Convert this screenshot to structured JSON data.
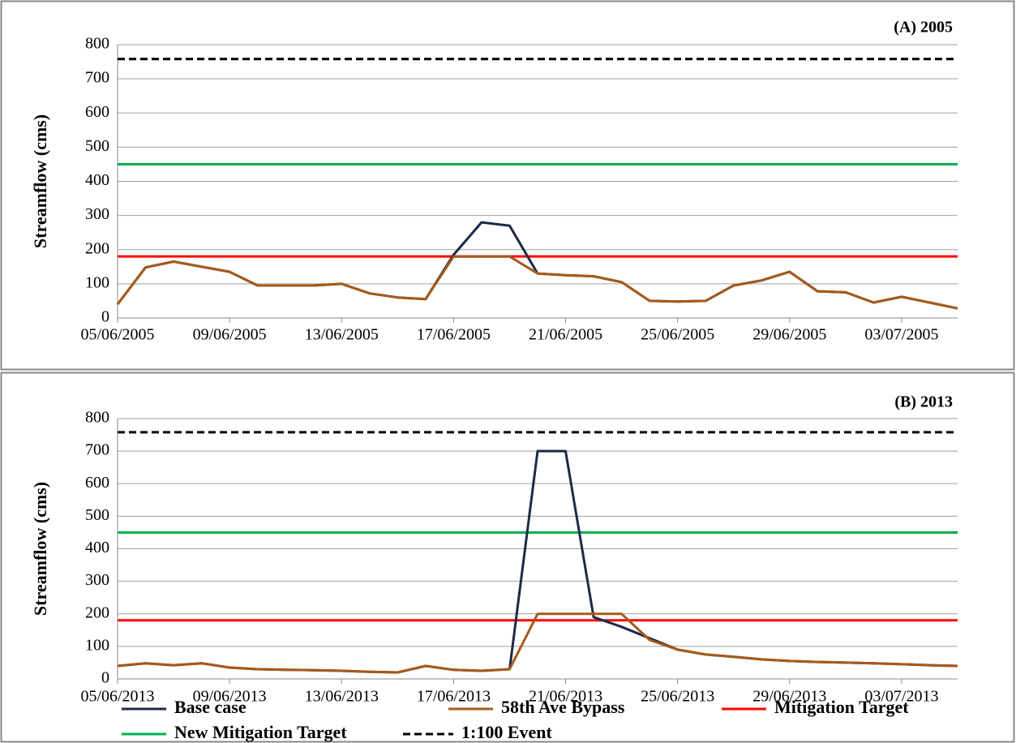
{
  "chart_data": [
    {
      "type": "line",
      "title": "(A) 2005",
      "y_label": "Streamflow (cms)",
      "x": [
        "05/06/2005",
        "06/06/2005",
        "07/06/2005",
        "08/06/2005",
        "09/06/2005",
        "10/06/2005",
        "11/06/2005",
        "12/06/2005",
        "13/06/2005",
        "14/06/2005",
        "15/06/2005",
        "16/06/2005",
        "17/06/2005",
        "18/06/2005",
        "19/06/2005",
        "20/06/2005",
        "21/06/2005",
        "22/06/2005",
        "23/06/2005",
        "24/06/2005",
        "25/06/2005",
        "26/06/2005",
        "27/06/2005",
        "28/06/2005",
        "29/06/2005",
        "30/06/2005",
        "01/07/2005",
        "02/07/2005",
        "03/07/2005",
        "04/07/2005",
        "05/07/2005"
      ],
      "series": [
        {
          "color": "#1c2a48",
          "values": [
            40,
            148,
            165,
            150,
            135,
            95,
            95,
            95,
            100,
            72,
            60,
            55,
            185,
            280,
            270,
            130,
            125,
            122,
            105,
            50,
            48,
            50,
            95,
            110,
            135,
            78,
            75,
            45,
            62,
            45,
            28
          ]
        },
        {
          "color": "#a65a1a",
          "values": [
            40,
            148,
            165,
            150,
            135,
            95,
            95,
            95,
            100,
            72,
            60,
            55,
            180,
            180,
            180,
            130,
            125,
            122,
            105,
            50,
            48,
            50,
            95,
            110,
            135,
            78,
            75,
            45,
            62,
            45,
            28
          ]
        }
      ],
      "reference_lines": [
        {
          "value": 180,
          "color": "#ff0000"
        },
        {
          "value": 450,
          "color": "#00b050"
        },
        {
          "value": 758,
          "color": "#000000",
          "dashed": true
        }
      ],
      "xlim": [
        "05/06/2005",
        "05/07/2005"
      ],
      "xticks": [
        "05/06/2005",
        "09/06/2005",
        "13/06/2005",
        "17/06/2005",
        "21/06/2005",
        "25/06/2005",
        "29/06/2005",
        "03/07/2005"
      ],
      "ylim": [
        0,
        800
      ],
      "yticks": [
        0,
        100,
        200,
        300,
        400,
        500,
        600,
        700,
        800
      ],
      "grid": true
    },
    {
      "type": "line",
      "title": "(B) 2013",
      "y_label": "Streamflow (cms)",
      "x": [
        "05/06/2013",
        "06/06/2013",
        "07/06/2013",
        "08/06/2013",
        "09/06/2013",
        "10/06/2013",
        "11/06/2013",
        "12/06/2013",
        "13/06/2013",
        "14/06/2013",
        "15/06/2013",
        "16/06/2013",
        "17/06/2013",
        "18/06/2013",
        "19/06/2013",
        "20/06/2013",
        "21/06/2013",
        "22/06/2013",
        "23/06/2013",
        "24/06/2013",
        "25/06/2013",
        "26/06/2013",
        "27/06/2013",
        "28/06/2013",
        "29/06/2013",
        "30/06/2013",
        "01/07/2013",
        "02/07/2013",
        "03/07/2013",
        "04/07/2013",
        "05/07/2013"
      ],
      "series": [
        {
          "name": "Base case",
          "color": "#1c2a48",
          "values": [
            40,
            48,
            42,
            48,
            35,
            30,
            28,
            27,
            25,
            22,
            20,
            40,
            28,
            25,
            30,
            700,
            700,
            190,
            160,
            125,
            90,
            75,
            68,
            60,
            55,
            52,
            50,
            48,
            45,
            42,
            40
          ]
        },
        {
          "name": "58th Ave Bypass",
          "color": "#a65a1a",
          "values": [
            40,
            48,
            42,
            48,
            35,
            30,
            28,
            27,
            25,
            22,
            20,
            40,
            28,
            25,
            30,
            200,
            200,
            200,
            200,
            120,
            90,
            75,
            68,
            60,
            55,
            52,
            50,
            48,
            45,
            42,
            40
          ]
        }
      ],
      "reference_lines": [
        {
          "name": "Mitigation Target",
          "value": 180,
          "color": "#ff0000"
        },
        {
          "name": "New Mitigation Target",
          "value": 450,
          "color": "#00b050"
        },
        {
          "name": "1:100 Event",
          "value": 758,
          "color": "#000000",
          "dashed": true
        }
      ],
      "xlim": [
        "05/06/2013",
        "05/07/2013"
      ],
      "xticks": [
        "05/06/2013",
        "09/06/2013",
        "13/06/2013",
        "17/06/2013",
        "21/06/2013",
        "25/06/2013",
        "29/06/2013",
        "03/07/2013"
      ],
      "ylim": [
        0,
        800
      ],
      "yticks": [
        0,
        100,
        200,
        300,
        400,
        500,
        600,
        700,
        800
      ],
      "grid": true
    }
  ]
}
